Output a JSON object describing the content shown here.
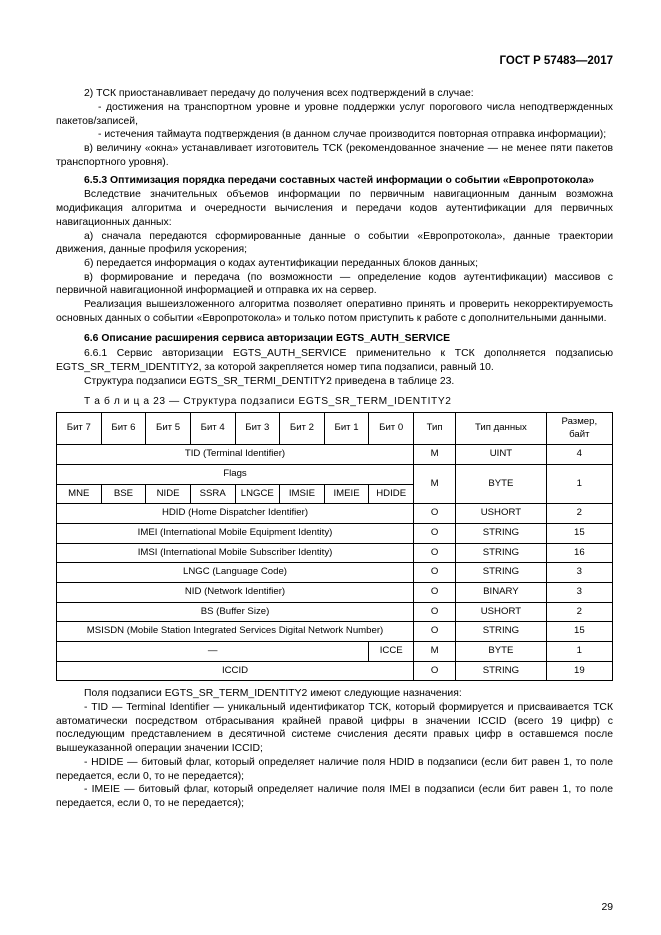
{
  "doc_header": "ГОСТ Р 57483—2017",
  "text": {
    "p1": "2) ТСК приостанавливает передачу до получения всех подтверждений в случае:",
    "p2": "- достижения на транспортном уровне и уровне поддержки услуг порогового числа неподтвержденных пакетов/записей,",
    "p3": "- истечения таймаута подтверждения (в данном случае производится повторная отправка информации);",
    "p4": "в) величину «окна» устанавливает изготовитель ТСК (рекомендованное значение — не менее пяти пакетов транспортного уровня).",
    "s653_title": "6.5.3 Оптимизация порядка передачи составных частей информации о событии «Европротокола»",
    "p5": "Вследствие значительных объемов информации по первичным навигационным данным возможна модификация алгоритма и очередности вычисления и передачи кодов аутентификации для первичных навигационных данных:",
    "p6": "а) сначала передаются сформированные данные о событии «Европротокола», данные траектории движения, данные профиля ускорения;",
    "p7": "б) передается информация о кодах аутентификации переданных блоков данных;",
    "p8": "в) формирование и передача (по возможности — определение кодов аутентификации) массивов с первичной навигационной информацией и отправка их на сервер.",
    "p9": "Реализация вышеизложенного алгоритма позволяет оперативно принять и проверить некорректируемость основных данных о событии «Европротокола» и только потом приступить к работе с дополнительными данными.",
    "s66_title": "6.6 Описание расширения сервиса авторизации EGTS_AUTH_SERVICE",
    "p10": "6.6.1 Сервис авторизации EGTS_AUTH_SERVICE применительно к ТСК дополняется подзаписью EGTS_SR_TERM_IDENTITY2, за которой закрепляется номер типа подзаписи, равный 10.",
    "p11": "Структура подзаписи EGTS_SR_TERMI_DENTITY2 приведена в таблице 23.",
    "table_caption": "Т а б л и ц а  23 — Структура подзаписи EGTS_SR_TERM_IDENTITY2",
    "after1": "Поля подзаписи EGTS_SR_TERM_IDENTITY2 имеют следующие назначения:",
    "after2": "- TID — Terminal Identifier — уникальный идентификатор ТСК, который формируется и присваивается ТСК автоматически посредством отбрасывания крайней правой цифры в значении ICCID (всего 19 цифр) с последующим представлением в десятичной системе счисления десяти правых цифр в оставшемся после вышеуказанной операции значении ICCID;",
    "after3": "- HDIDE — битовый флаг, который определяет наличие поля HDID в подзаписи (если бит равен 1, то поле передается, если 0, то не передается);",
    "after4": "- IMEIE — битовый флаг, который определяет наличие поля IMEI в подзаписи (если бит равен 1, то поле передается, если 0, то не передается);"
  },
  "table": {
    "header_bits": [
      "Бит 7",
      "Бит 6",
      "Бит 5",
      "Бит 4",
      "Бит 3",
      "Бит 2",
      "Бит 1",
      "Бит 0"
    ],
    "header_type": "Тип",
    "header_dtype": "Тип данных",
    "header_size": "Размер, байт",
    "rows": [
      {
        "label": "TID (Terminal Identifier)",
        "flags": null,
        "type": "M",
        "dtype": "UINT",
        "size": "4"
      },
      {
        "label": "Flags",
        "flags": [
          "MNE",
          "BSE",
          "NIDE",
          "SSRA",
          "LNGCE",
          "IMSIE",
          "IMEIE",
          "HDIDE"
        ],
        "type": "M",
        "dtype": "BYTE",
        "size": "1"
      },
      {
        "label": "HDID (Home Dispatcher Identifier)",
        "flags": null,
        "type": "O",
        "dtype": "USHORT",
        "size": "2"
      },
      {
        "label": "IMEI (International Mobile Equipment Identity)",
        "flags": null,
        "type": "O",
        "dtype": "STRING",
        "size": "15"
      },
      {
        "label": "IMSI (International Mobile Subscriber Identity)",
        "flags": null,
        "type": "O",
        "dtype": "STRING",
        "size": "16"
      },
      {
        "label": "LNGC (Language Code)",
        "flags": null,
        "type": "O",
        "dtype": "STRING",
        "size": "3"
      },
      {
        "label": "NID (Network Identifier)",
        "flags": null,
        "type": "O",
        "dtype": "BINARY",
        "size": "3"
      },
      {
        "label": "BS (Buffer Size)",
        "flags": null,
        "type": "O",
        "dtype": "USHORT",
        "size": "2"
      },
      {
        "label": "MSISDN (Mobile Station Integrated Services Digital Network Number)",
        "flags": null,
        "type": "O",
        "dtype": "STRING",
        "size": "15"
      },
      {
        "label": "—",
        "icce": "ICCE",
        "type": "M",
        "dtype": "BYTE",
        "size": "1"
      },
      {
        "label": "ICCID",
        "flags": null,
        "type": "O",
        "dtype": "STRING",
        "size": "19"
      }
    ]
  },
  "page_number": "29",
  "colors": {
    "text": "#000000",
    "bg": "#ffffff",
    "border": "#000000"
  }
}
